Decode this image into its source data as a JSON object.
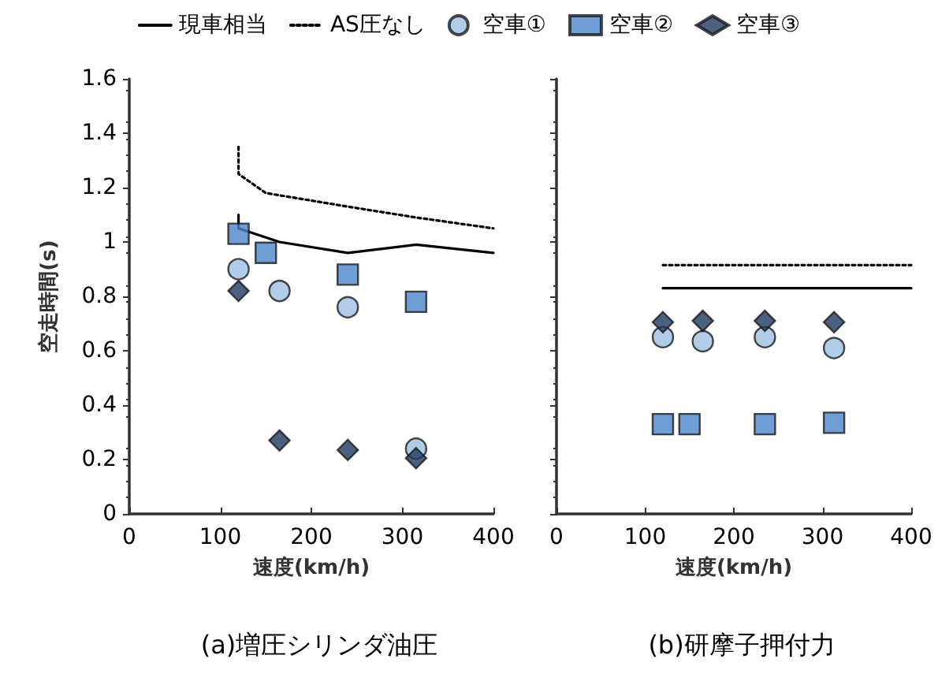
{
  "chart_data": [
    {
      "type": "scatter",
      "title": "(a)増圧シリンダ油圧",
      "xlabel": "速度(km/h)",
      "ylabel": "空走時間(s)",
      "xlim": [
        0,
        400
      ],
      "xticks": [
        0,
        100,
        200,
        300,
        400
      ],
      "ylim": [
        0,
        1.6
      ],
      "yticks": [
        0,
        0.2,
        0.4,
        0.6,
        0.8,
        1,
        1.2,
        1.4,
        1.6
      ],
      "grid": false,
      "legend": "top",
      "series": [
        {
          "name": "現車相当",
          "type": "line",
          "line_style": "solid",
          "marker": "none",
          "color": "#000000",
          "x": [
            120,
            120,
            165,
            240,
            315,
            400
          ],
          "values": [
            1.1,
            1.05,
            1.0,
            0.96,
            0.99,
            0.96
          ]
        },
        {
          "name": "AS圧なし",
          "type": "line",
          "line_style": "dotted",
          "marker": "none",
          "color": "#000000",
          "x": [
            120,
            120,
            150,
            240,
            315,
            400
          ],
          "values": [
            1.35,
            1.25,
            1.18,
            1.13,
            1.09,
            1.05
          ]
        },
        {
          "name": "空車①",
          "marker": "circle",
          "color": "#9dbfe3",
          "x": [
            120,
            165,
            240,
            315
          ],
          "values": [
            0.9,
            0.82,
            0.76,
            0.24
          ]
        },
        {
          "name": "空車②",
          "marker": "square",
          "color": "#4a86c8",
          "x": [
            120,
            150,
            240,
            315
          ],
          "values": [
            1.03,
            0.96,
            0.88,
            0.78
          ]
        },
        {
          "name": "空車③",
          "marker": "diamond",
          "color": "#1f3a60",
          "x": [
            120,
            165,
            240,
            315
          ],
          "values": [
            0.82,
            0.27,
            0.235,
            0.205
          ]
        }
      ]
    },
    {
      "type": "scatter",
      "title": "(b)研摩子押付力",
      "xlabel": "速度(km/h)",
      "xlim": [
        0,
        400
      ],
      "xticks": [
        0,
        100,
        200,
        300,
        400
      ],
      "ylim": [
        0,
        1.6
      ],
      "yticks": [
        0,
        0.2,
        0.4,
        0.6,
        0.8,
        1,
        1.2,
        1.4,
        1.6
      ],
      "grid": false,
      "legend": false,
      "tick_labels": "x",
      "series": [
        {
          "type": "line",
          "line_style": "solid",
          "marker": "none",
          "color": "#000000",
          "x": [
            120,
            400
          ],
          "values": [
            0.83,
            0.83
          ]
        },
        {
          "type": "line",
          "line_style": "dotted",
          "marker": "none",
          "color": "#000000",
          "x": [
            120,
            400
          ],
          "values": [
            0.915,
            0.915
          ]
        },
        {
          "marker": "circle",
          "color": "#9dbfe3",
          "x": [
            120,
            165,
            235,
            313
          ],
          "values": [
            0.65,
            0.635,
            0.65,
            0.61
          ]
        },
        {
          "marker": "square",
          "color": "#4a86c8",
          "x": [
            120,
            150,
            235,
            313
          ],
          "values": [
            0.33,
            0.33,
            0.33,
            0.335
          ]
        },
        {
          "marker": "diamond",
          "color": "#1f3a60",
          "x": [
            120,
            165,
            235,
            313
          ],
          "values": [
            0.705,
            0.71,
            0.71,
            0.705
          ]
        }
      ]
    }
  ]
}
